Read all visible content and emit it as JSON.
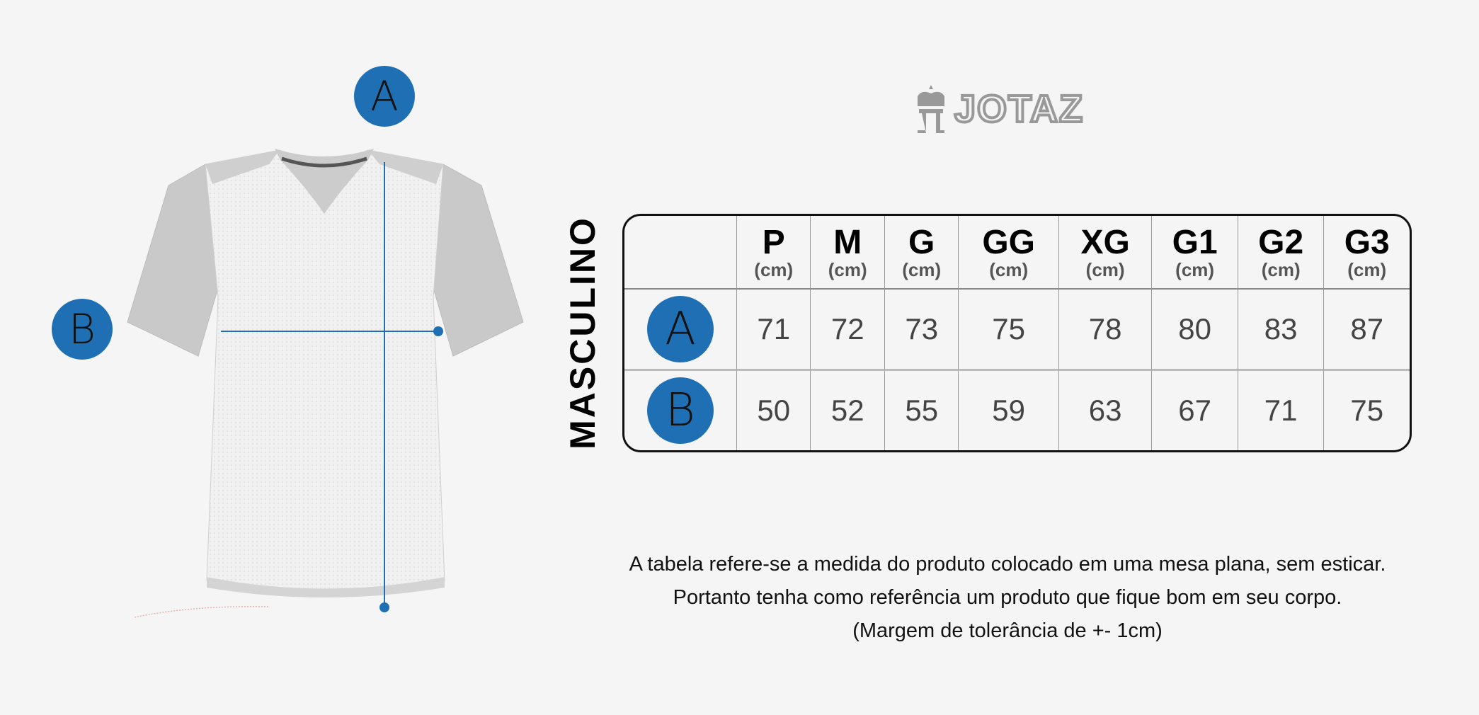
{
  "brand": {
    "name": "JOTAZ",
    "icon": "crown-jt-logo"
  },
  "figure": {
    "labels": [
      "A",
      "B"
    ],
    "accent_color": "#1f6fb5"
  },
  "table": {
    "title": "MASCULINO",
    "unit": "(cm)",
    "sizes": [
      "P",
      "M",
      "G",
      "GG",
      "XG",
      "G1",
      "G2",
      "G3"
    ],
    "rows": [
      {
        "label": "A",
        "values": [
          "71",
          "72",
          "73",
          "75",
          "78",
          "80",
          "83",
          "87"
        ]
      },
      {
        "label": "B",
        "values": [
          "50",
          "52",
          "55",
          "59",
          "63",
          "67",
          "71",
          "75"
        ]
      }
    ]
  },
  "note": [
    "A tabela refere-se a medida do produto colocado em uma mesa plana, sem esticar.",
    "Portanto tenha como referência um produto que fique bom em seu corpo.",
    "(Margem de tolerância de +- 1cm)"
  ]
}
